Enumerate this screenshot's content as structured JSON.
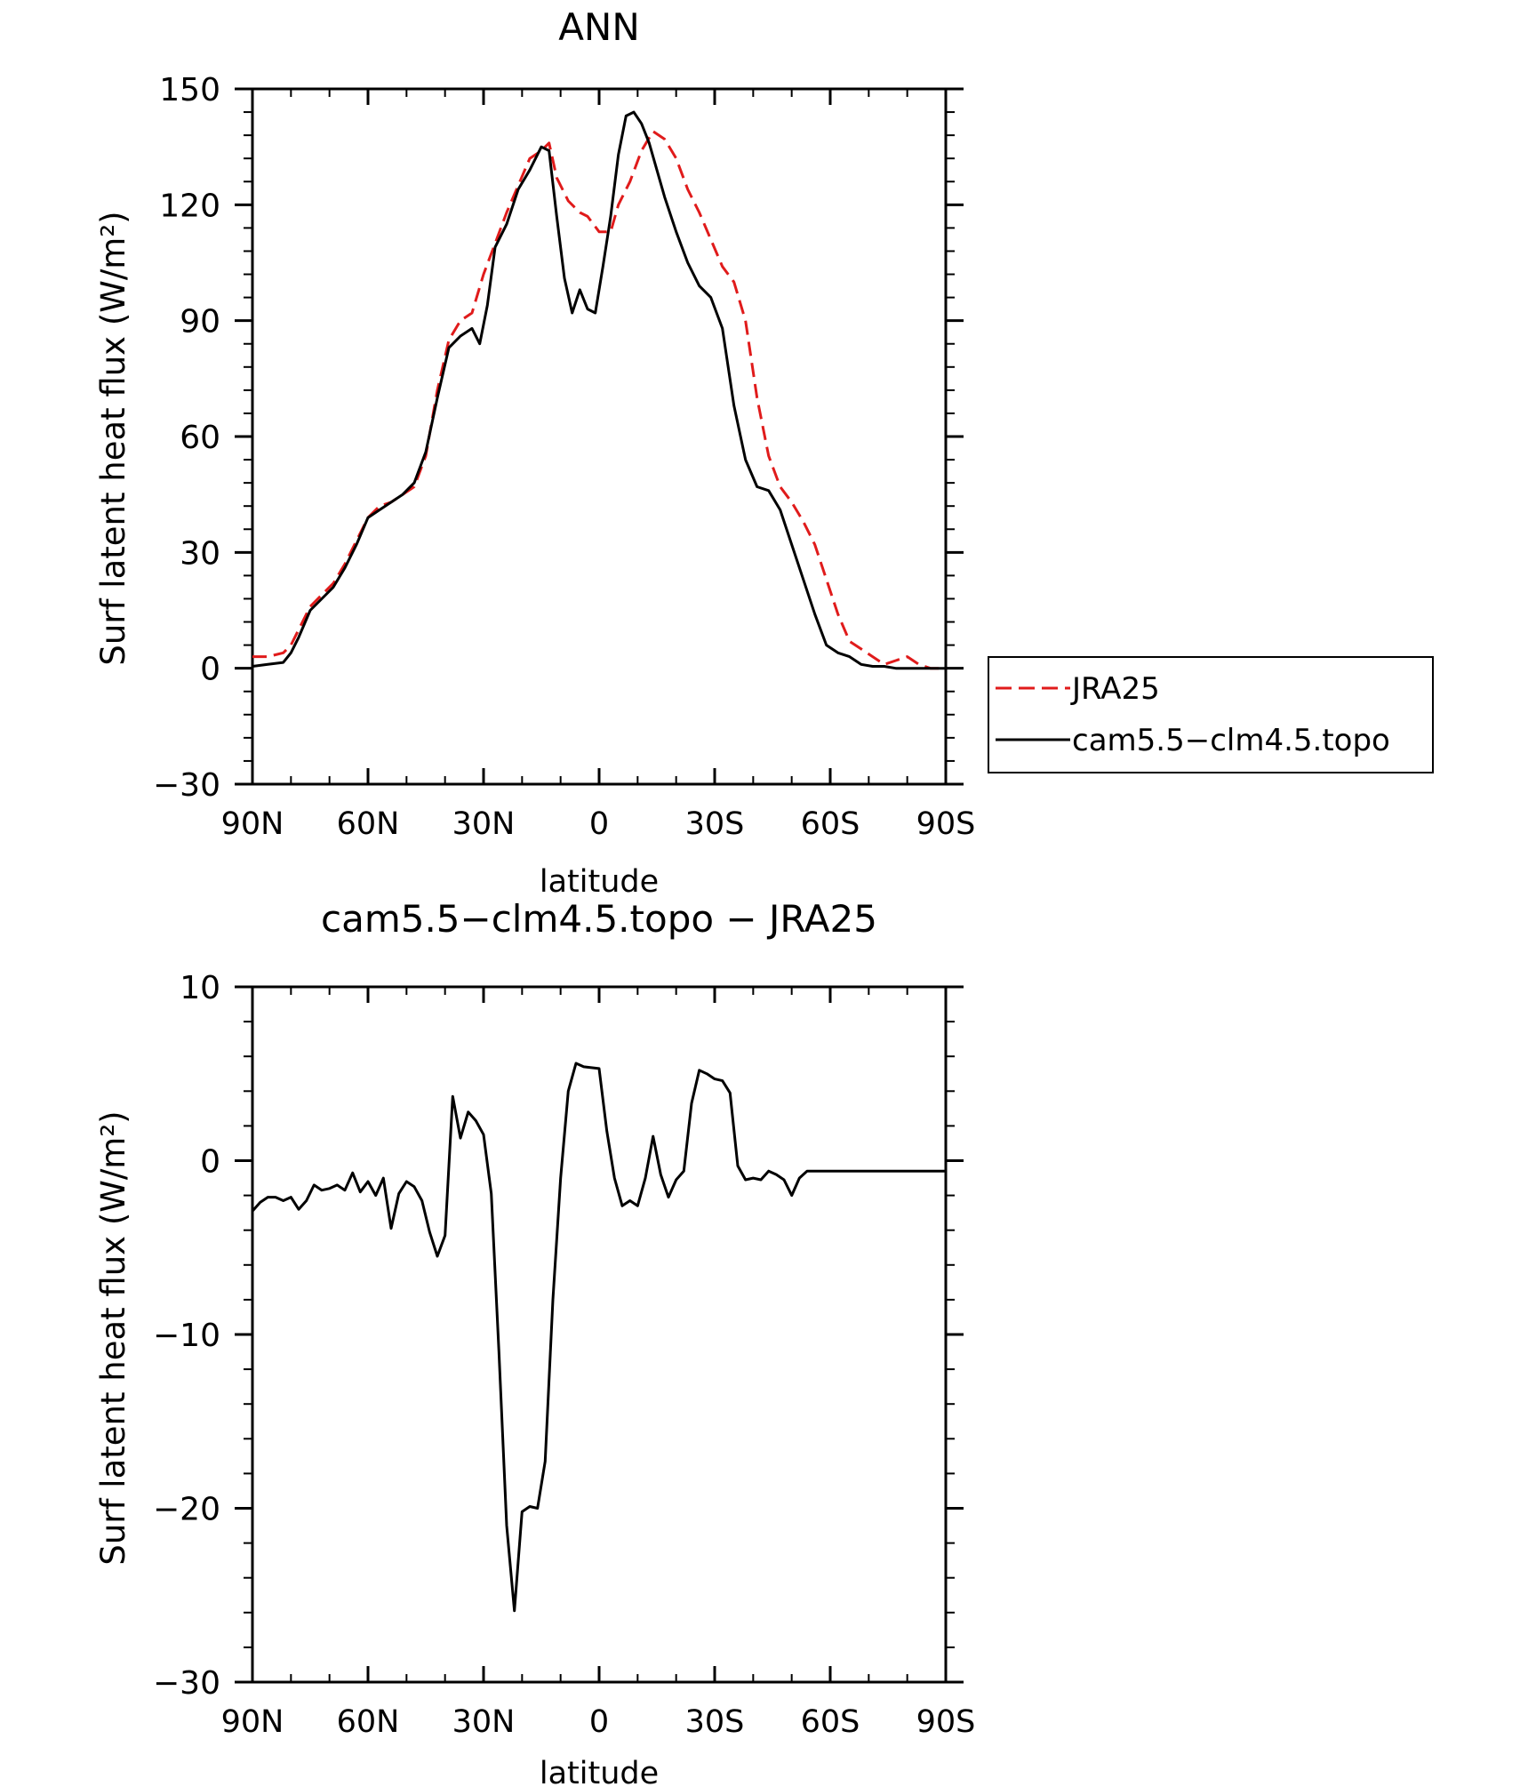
{
  "chart_data": [
    {
      "type": "line",
      "title": "ANN",
      "xlabel": "latitude",
      "ylabel": "Surf latent heat flux (W/m²)",
      "xlim": [
        90,
        -90
      ],
      "ylim": [
        -30,
        150
      ],
      "xticks": [
        90,
        60,
        30,
        0,
        -30,
        -60,
        -90
      ],
      "xtick_labels": [
        "90N",
        "60N",
        "30N",
        "0",
        "30S",
        "60S",
        "90S"
      ],
      "yticks": [
        -30,
        0,
        30,
        60,
        90,
        120,
        150
      ],
      "ytick_labels": [
        "−30",
        "0",
        "30",
        "60",
        "90",
        "120",
        "150"
      ],
      "legend": {
        "placement": "right",
        "entries": [
          "JRA25",
          "cam5.5−clm4.5.topo"
        ]
      },
      "series": [
        {
          "name": "JRA25",
          "color": "#e01b1b",
          "dash": "dashed",
          "x": [
            90,
            86,
            82,
            80,
            78,
            75,
            72,
            69,
            66,
            63,
            60,
            57,
            54,
            51,
            48,
            45,
            42,
            39,
            36,
            33,
            30,
            27,
            24,
            21,
            18,
            15,
            13,
            11,
            8,
            5,
            3,
            0,
            -3,
            -5,
            -8,
            -11,
            -14,
            -17,
            -20,
            -23,
            -26,
            -29,
            -32,
            -35,
            -38,
            -41,
            -44,
            -47,
            -50,
            -53,
            -56,
            -59,
            -62,
            -65,
            -68,
            -71,
            -74,
            -77,
            -80,
            -83,
            -86,
            -90
          ],
          "y": [
            3,
            3,
            4,
            6,
            10,
            16,
            19,
            22,
            27,
            33,
            39,
            42,
            43,
            45,
            47,
            55,
            72,
            85,
            90,
            92,
            102,
            110,
            118,
            125,
            132,
            134,
            136,
            127,
            121,
            118,
            117,
            113,
            113,
            120,
            126,
            134,
            139,
            137,
            132,
            124,
            118,
            111,
            104,
            100,
            90,
            70,
            55,
            47,
            43,
            38,
            32,
            23,
            14,
            7,
            5,
            3,
            1,
            2,
            3,
            1,
            0,
            0
          ]
        },
        {
          "name": "cam5.5−clm4.5.topo",
          "color": "#000000",
          "dash": "solid",
          "x": [
            90,
            86,
            82,
            80,
            78,
            75,
            72,
            69,
            66,
            63,
            60,
            57,
            54,
            51,
            48,
            45,
            42,
            39,
            36,
            33,
            31,
            29,
            27,
            24,
            21,
            18,
            15,
            13,
            11,
            9,
            7,
            5,
            3,
            1,
            -1,
            -3,
            -5,
            -7,
            -9,
            -11,
            -13,
            -15,
            -17,
            -20,
            -23,
            -26,
            -29,
            -32,
            -35,
            -38,
            -41,
            -44,
            -47,
            -50,
            -53,
            -56,
            -59,
            -62,
            -65,
            -68,
            -71,
            -74,
            -77,
            -80,
            -83,
            -86,
            -90
          ],
          "y": [
            0.5,
            1,
            1.5,
            4,
            8,
            15,
            18,
            21,
            26,
            32,
            39,
            41,
            43,
            45,
            48,
            56,
            70,
            83,
            86,
            88,
            84,
            94,
            109,
            115,
            124,
            129,
            135,
            134,
            117,
            101,
            92,
            98,
            93,
            92,
            104,
            117,
            133,
            143,
            144,
            141,
            136,
            129,
            122,
            113,
            105,
            99,
            96,
            88,
            68,
            54,
            47,
            46,
            41,
            32,
            23,
            14,
            6,
            4,
            3,
            1,
            0.5,
            0.5,
            0,
            0,
            0,
            0,
            0
          ]
        }
      ]
    },
    {
      "type": "line",
      "title": "cam5.5−clm4.5.topo − JRA25",
      "xlabel": "latitude",
      "ylabel": "Surf latent heat flux (W/m²)",
      "xlim": [
        90,
        -90
      ],
      "ylim": [
        -30,
        10
      ],
      "xticks": [
        90,
        60,
        30,
        0,
        -30,
        -60,
        -90
      ],
      "xtick_labels": [
        "90N",
        "60N",
        "30N",
        "0",
        "30S",
        "60S",
        "90S"
      ],
      "yticks": [
        -30,
        -20,
        -10,
        0,
        10
      ],
      "ytick_labels": [
        "−30",
        "−20",
        "−10",
        "0",
        "10"
      ],
      "series": [
        {
          "color": "#000000",
          "dash": "solid",
          "x": [
            90,
            88,
            86,
            84,
            82,
            80,
            78,
            76,
            74,
            72,
            70,
            68,
            66,
            64,
            62,
            60,
            58,
            56,
            54,
            52,
            50,
            48,
            46,
            44,
            42,
            40,
            38,
            36,
            34,
            32,
            30,
            28,
            26,
            24,
            22,
            20,
            18,
            16,
            14,
            12,
            10,
            8,
            6,
            4,
            2,
            0,
            -2,
            -4,
            -6,
            -8,
            -10,
            -12,
            -14,
            -16,
            -18,
            -20,
            -22,
            -24,
            -26,
            -28,
            -30,
            -32,
            -34,
            -36,
            -38,
            -40,
            -42,
            -44,
            -46,
            -48,
            -50,
            -52,
            -54,
            -56,
            -58,
            -60,
            -62,
            -64,
            -66,
            -68,
            -70,
            -72,
            -74,
            -76,
            -78,
            -80,
            -82,
            -84,
            -86,
            -88,
            -90
          ],
          "y": [
            -2.9,
            -2.4,
            -2.1,
            -2.1,
            -2.3,
            -2.1,
            -2.8,
            -2.3,
            -1.4,
            -1.7,
            -1.6,
            -1.4,
            -1.7,
            -0.7,
            -1.8,
            -1.2,
            -2.0,
            -1.0,
            -3.9,
            -1.9,
            -1.2,
            -1.5,
            -2.3,
            -4.1,
            -5.5,
            -4.3,
            3.7,
            1.3,
            2.8,
            2.3,
            1.5,
            -1.9,
            -11.0,
            -21.0,
            -25.9,
            -20.2,
            -19.9,
            -20.0,
            -17.3,
            -8.0,
            -1.0,
            4.0,
            5.6,
            5.4,
            5.35,
            5.3,
            1.7,
            -1.0,
            -2.6,
            -2.3,
            -2.6,
            -1.0,
            1.4,
            -0.8,
            -2.1,
            -1.1,
            -0.6,
            3.3,
            5.2,
            5.0,
            4.7,
            4.6,
            3.9,
            -0.3,
            -1.1,
            -1.0,
            -1.1,
            -0.6,
            -0.8,
            -1.1,
            -2.0,
            -1.0,
            -0.6,
            -0.6,
            -0.6,
            -0.6,
            -0.6,
            -0.6,
            -0.6,
            -0.6,
            -0.6,
            -0.6,
            -0.6,
            -0.6,
            -0.6,
            -0.6,
            -0.6,
            -0.6,
            -0.6,
            -0.6,
            -0.6
          ]
        }
      ]
    }
  ]
}
